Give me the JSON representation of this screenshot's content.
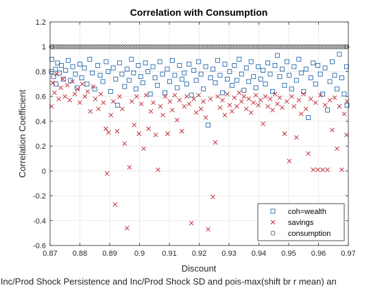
{
  "chart_data": {
    "type": "scatter",
    "title": "Correlation with Consumption",
    "xlabel": "Discount",
    "ylabel": "Correlation Coefficient",
    "caption": "d Inc/Prod Shock Persistence and Inc/Prod Shock SD and pois-max(shift br r mean) an",
    "xlim": [
      0.87,
      0.97
    ],
    "ylim": [
      -0.6,
      1.2
    ],
    "xticks": [
      "0.87",
      "0.88",
      "0.89",
      "0.9",
      "0.91",
      "0.92",
      "0.93",
      "0.94",
      "0.95",
      "0.96",
      "0.97"
    ],
    "yticks": [
      "-0.6",
      "-0.4",
      "-0.2",
      "0",
      "0.2",
      "0.4",
      "0.6",
      "0.8",
      "1",
      "1.2"
    ],
    "grid": true,
    "legend_position": "bottom-right",
    "series": [
      {
        "name": "coh=wealth",
        "marker": "square",
        "color": "#2166ac",
        "points": [
          [
            0.8702,
            0.8
          ],
          [
            0.8706,
            0.9
          ],
          [
            0.8712,
            0.76
          ],
          [
            0.8718,
            0.82
          ],
          [
            0.872,
            0.7
          ],
          [
            0.8725,
            0.87
          ],
          [
            0.8731,
            0.79
          ],
          [
            0.8738,
            0.85
          ],
          [
            0.8745,
            0.74
          ],
          [
            0.8752,
            0.81
          ],
          [
            0.8761,
            0.89
          ],
          [
            0.8768,
            0.73
          ],
          [
            0.8776,
            0.84
          ],
          [
            0.8785,
            0.78
          ],
          [
            0.8791,
            0.67
          ],
          [
            0.88,
            0.86
          ],
          [
            0.8806,
            0.75
          ],
          [
            0.8815,
            0.83
          ],
          [
            0.8824,
            0.7
          ],
          [
            0.8833,
            0.9
          ],
          [
            0.8842,
            0.79
          ],
          [
            0.885,
            0.66
          ],
          [
            0.886,
            0.85
          ],
          [
            0.8868,
            0.77
          ],
          [
            0.8877,
            0.72
          ],
          [
            0.8888,
            0.88
          ],
          [
            0.8895,
            0.8
          ],
          [
            0.8903,
            0.64
          ],
          [
            0.8912,
            0.83
          ],
          [
            0.892,
            0.74
          ],
          [
            0.8926,
            0.53
          ],
          [
            0.8933,
            0.87
          ],
          [
            0.8941,
            0.78
          ],
          [
            0.895,
            0.68
          ],
          [
            0.8958,
            0.82
          ],
          [
            0.8965,
            0.73
          ],
          [
            0.8973,
            0.9
          ],
          [
            0.898,
            0.79
          ],
          [
            0.8988,
            0.66
          ],
          [
            0.8996,
            0.85
          ],
          [
            0.9004,
            0.76
          ],
          [
            0.9011,
            0.71
          ],
          [
            0.902,
            0.87
          ],
          [
            0.9028,
            0.8
          ],
          [
            0.9036,
            0.62
          ],
          [
            0.9045,
            0.84
          ],
          [
            0.9052,
            0.75
          ],
          [
            0.906,
            0.69
          ],
          [
            0.9068,
            0.88
          ],
          [
            0.9077,
            0.78
          ],
          [
            0.9085,
            0.63
          ],
          [
            0.9093,
            0.82
          ],
          [
            0.9101,
            0.72
          ],
          [
            0.911,
            0.89
          ],
          [
            0.9118,
            0.77
          ],
          [
            0.9126,
            0.67
          ],
          [
            0.9134,
            0.85
          ],
          [
            0.9142,
            0.74
          ],
          [
            0.915,
            0.79
          ],
          [
            0.9158,
            0.7
          ],
          [
            0.9166,
            0.86
          ],
          [
            0.9174,
            0.61
          ],
          [
            0.9182,
            0.81
          ],
          [
            0.919,
            0.73
          ],
          [
            0.9198,
            0.88
          ],
          [
            0.9206,
            0.78
          ],
          [
            0.9214,
            0.66
          ],
          [
            0.9222,
            0.84
          ],
          [
            0.923,
            0.37
          ],
          [
            0.9238,
            0.75
          ],
          [
            0.9246,
            0.82
          ],
          [
            0.9254,
            0.71
          ],
          [
            0.9262,
            0.89
          ],
          [
            0.927,
            0.77
          ],
          [
            0.9278,
            0.63
          ],
          [
            0.9286,
            0.86
          ],
          [
            0.9294,
            0.74
          ],
          [
            0.9302,
            0.8
          ],
          [
            0.931,
            0.69
          ],
          [
            0.9318,
            0.85
          ],
          [
            0.9326,
            0.73
          ],
          [
            0.9334,
            0.9
          ],
          [
            0.9342,
            0.78
          ],
          [
            0.935,
            0.65
          ],
          [
            0.9358,
            0.83
          ],
          [
            0.9366,
            0.72
          ],
          [
            0.9374,
            0.88
          ],
          [
            0.9382,
            0.76
          ],
          [
            0.939,
            0.67
          ],
          [
            0.9398,
            0.84
          ],
          [
            0.9406,
            0.74
          ],
          [
            0.9414,
            0.81
          ],
          [
            0.9422,
            0.7
          ],
          [
            0.943,
            0.87
          ],
          [
            0.9438,
            0.78
          ],
          [
            0.9446,
            0.64
          ],
          [
            0.9454,
            0.85
          ],
          [
            0.9462,
            0.93
          ],
          [
            0.947,
            0.76
          ],
          [
            0.9478,
            0.82
          ],
          [
            0.9486,
            0.69
          ],
          [
            0.9494,
            0.88
          ],
          [
            0.9502,
            0.77
          ],
          [
            0.951,
            0.66
          ],
          [
            0.9518,
            0.84
          ],
          [
            0.9526,
            0.73
          ],
          [
            0.9534,
            0.9
          ],
          [
            0.9542,
            0.79
          ],
          [
            0.955,
            0.64
          ],
          [
            0.9558,
            0.82
          ],
          [
            0.9566,
            0.43
          ],
          [
            0.9574,
            0.75
          ],
          [
            0.9582,
            0.87
          ],
          [
            0.959,
            0.7
          ],
          [
            0.9598,
            0.85
          ],
          [
            0.9606,
            0.78
          ],
          [
            0.9614,
            0.62
          ],
          [
            0.9622,
            0.83
          ],
          [
            0.963,
            0.49
          ],
          [
            0.9638,
            0.72
          ],
          [
            0.9646,
            0.88
          ],
          [
            0.9654,
            0.77
          ],
          [
            0.9662,
            0.66
          ],
          [
            0.967,
            0.94
          ],
          [
            0.9678,
            0.75
          ],
          [
            0.9686,
            0.62
          ],
          [
            0.9694,
            0.84
          ],
          [
            0.9698,
            0.53
          ]
        ]
      },
      {
        "name": "savings",
        "marker": "x",
        "color": "#c0202b",
        "points": [
          [
            0.8703,
            0.52
          ],
          [
            0.8709,
            0.71
          ],
          [
            0.8715,
            0.63
          ],
          [
            0.8722,
            0.78
          ],
          [
            0.8729,
            0.58
          ],
          [
            0.8736,
            0.67
          ],
          [
            0.8743,
            0.74
          ],
          [
            0.875,
            0.6
          ],
          [
            0.8758,
            0.69
          ],
          [
            0.8766,
            0.57
          ],
          [
            0.8775,
            0.72
          ],
          [
            0.8783,
            0.62
          ],
          [
            0.8792,
            0.66
          ],
          [
            0.88,
            0.55
          ],
          [
            0.8808,
            0.7
          ],
          [
            0.8817,
            0.6
          ],
          [
            0.8826,
            0.64
          ],
          [
            0.8835,
            0.48
          ],
          [
            0.8844,
            0.68
          ],
          [
            0.8852,
            0.58
          ],
          [
            0.8862,
            0.5
          ],
          [
            0.887,
            0.62
          ],
          [
            0.8879,
            0.55
          ],
          [
            0.8887,
            0.34
          ],
          [
            0.8891,
            -0.02
          ],
          [
            0.8896,
            0.31
          ],
          [
            0.8904,
            0.45
          ],
          [
            0.8912,
            0.56
          ],
          [
            0.8918,
            -0.27
          ],
          [
            0.8925,
            0.32
          ],
          [
            0.8933,
            0.6
          ],
          [
            0.8942,
            0.5
          ],
          [
            0.895,
            0.22
          ],
          [
            0.8958,
            -0.46
          ],
          [
            0.8966,
            0.03
          ],
          [
            0.8974,
            0.56
          ],
          [
            0.8982,
            0.37
          ],
          [
            0.899,
            0.6
          ],
          [
            0.8998,
            0.3
          ],
          [
            0.9006,
            0.54
          ],
          [
            0.9014,
            0.18
          ],
          [
            0.9022,
            0.61
          ],
          [
            0.903,
            0.34
          ],
          [
            0.9038,
            0.48
          ],
          [
            0.9046,
            0.55
          ],
          [
            0.9054,
            0.29
          ],
          [
            0.9062,
            0.01
          ],
          [
            0.907,
            0.52
          ],
          [
            0.9078,
            0.45
          ],
          [
            0.9086,
            0.6
          ],
          [
            0.9094,
            0.3
          ],
          [
            0.9102,
            0.56
          ],
          [
            0.911,
            0.49
          ],
          [
            0.9118,
            0.61
          ],
          [
            0.9126,
            0.41
          ],
          [
            0.9134,
            0.57
          ],
          [
            0.9142,
            0.32
          ],
          [
            0.915,
            0.52
          ],
          [
            0.9158,
            0.6
          ],
          [
            0.9166,
            0.54
          ],
          [
            0.9174,
            -0.42
          ],
          [
            0.9182,
            0.58
          ],
          [
            0.919,
            0.47
          ],
          [
            0.9198,
            0.61
          ],
          [
            0.9206,
            0.5
          ],
          [
            0.9214,
            0.56
          ],
          [
            0.9222,
            0.43
          ],
          [
            0.923,
            -0.47
          ],
          [
            0.9238,
            0.58
          ],
          [
            0.9246,
            -0.21
          ],
          [
            0.9254,
            0.23
          ],
          [
            0.9262,
            0.6
          ],
          [
            0.927,
            0.51
          ],
          [
            0.9278,
            0.57
          ],
          [
            0.9286,
            0.45
          ],
          [
            0.9294,
            0.62
          ],
          [
            0.9302,
            0.53
          ],
          [
            0.931,
            0.48
          ],
          [
            0.9318,
            0.59
          ],
          [
            0.9326,
            0.52
          ],
          [
            0.9334,
            0.63
          ],
          [
            0.9342,
            0.56
          ],
          [
            0.935,
            0.6
          ],
          [
            0.9358,
            0.5
          ],
          [
            0.9366,
            0.58
          ],
          [
            0.9374,
            0.47
          ],
          [
            0.9382,
            0.55
          ],
          [
            0.939,
            0.61
          ],
          [
            0.9398,
            0.53
          ],
          [
            0.9406,
            0.57
          ],
          [
            0.9414,
            0.38
          ],
          [
            0.9422,
            0.6
          ],
          [
            0.943,
            0.52
          ],
          [
            0.9438,
            0.58
          ],
          [
            0.9446,
            0.49
          ],
          [
            0.9454,
            0.62
          ],
          [
            0.9462,
            0.54
          ],
          [
            0.947,
            0.59
          ],
          [
            0.9478,
            0.51
          ],
          [
            0.9486,
            0.3
          ],
          [
            0.9494,
            0.56
          ],
          [
            0.9502,
            0.08
          ],
          [
            0.951,
            0.6
          ],
          [
            0.9518,
            0.52
          ],
          [
            0.9526,
            0.27
          ],
          [
            0.9534,
            0.57
          ],
          [
            0.9542,
            0.46
          ],
          [
            0.955,
            0.62
          ],
          [
            0.9558,
            0.5
          ],
          [
            0.9566,
            0.14
          ],
          [
            0.9574,
            0.58
          ],
          [
            0.9582,
            0.01
          ],
          [
            0.959,
            0.55
          ],
          [
            0.9598,
            0.01
          ],
          [
            0.9606,
            0.61
          ],
          [
            0.9614,
            0.01
          ],
          [
            0.9622,
            0.53
          ],
          [
            0.963,
            0.01
          ],
          [
            0.9638,
            0.57
          ],
          [
            0.9646,
            0.33
          ],
          [
            0.9654,
            0.59
          ],
          [
            0.9662,
            0.18
          ],
          [
            0.967,
            0.52
          ],
          [
            0.9678,
            0.01
          ],
          [
            0.9686,
            0.46
          ],
          [
            0.9694,
            0.29
          ],
          [
            0.9698,
            0.56
          ]
        ]
      },
      {
        "name": "consumption",
        "marker": "circle",
        "color": "#404040",
        "constant": 1,
        "points": []
      }
    ]
  }
}
